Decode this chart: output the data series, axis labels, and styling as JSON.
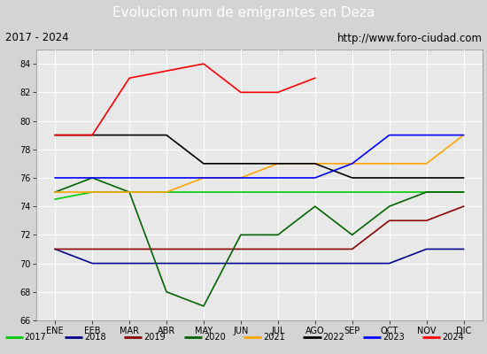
{
  "title": "Evolucion num de emigrantes en Deza",
  "subtitle_left": "2017 - 2024",
  "subtitle_right": "http://www.foro-ciudad.com",
  "months": [
    "ENE",
    "FEB",
    "MAR",
    "ABR",
    "MAY",
    "JUN",
    "JUL",
    "AGO",
    "SEP",
    "OCT",
    "NOV",
    "DIC"
  ],
  "ylim": [
    66,
    85
  ],
  "yticks": [
    66,
    68,
    70,
    72,
    74,
    76,
    78,
    80,
    82,
    84
  ],
  "series": {
    "2017": {
      "color": "#00cc00",
      "values": [
        74.5,
        75,
        75,
        75,
        75,
        75,
        75,
        75,
        75,
        75,
        75,
        75
      ]
    },
    "2018": {
      "color": "#00008b",
      "values": [
        71,
        70,
        70,
        70,
        70,
        70,
        70,
        70,
        70,
        70,
        71,
        71
      ]
    },
    "2019": {
      "color": "#8b0000",
      "values": [
        71,
        71,
        71,
        71,
        71,
        71,
        71,
        71,
        71,
        73,
        73,
        74
      ]
    },
    "2020": {
      "color": "#006400",
      "values": [
        75,
        76,
        75,
        68,
        67,
        72,
        72,
        74,
        72,
        74,
        75,
        75
      ]
    },
    "2021": {
      "color": "#ffa500",
      "values": [
        75,
        75,
        75,
        75,
        76,
        76,
        77,
        77,
        77,
        77,
        77,
        79
      ]
    },
    "2022": {
      "color": "#000000",
      "values": [
        79,
        79,
        79,
        79,
        77,
        77,
        77,
        77,
        76,
        76,
        76,
        76
      ]
    },
    "2023": {
      "color": "#0000ff",
      "values": [
        76,
        76,
        76,
        76,
        76,
        76,
        76,
        76,
        77,
        79,
        79,
        79
      ]
    },
    "2024": {
      "color": "#ff0000",
      "values": [
        79,
        79,
        83,
        83.5,
        84,
        82,
        82,
        83,
        null,
        null,
        null,
        null
      ]
    }
  },
  "background_color": "#d4d4d4",
  "plot_bg_color": "#e8e8e8",
  "title_bg_color": "#4472c4",
  "title_color": "#ffffff",
  "grid_color": "#ffffff",
  "legend_bg": "#ffffff",
  "subtitle_box_color": "#ffffff",
  "border_color": "#aaaaaa"
}
